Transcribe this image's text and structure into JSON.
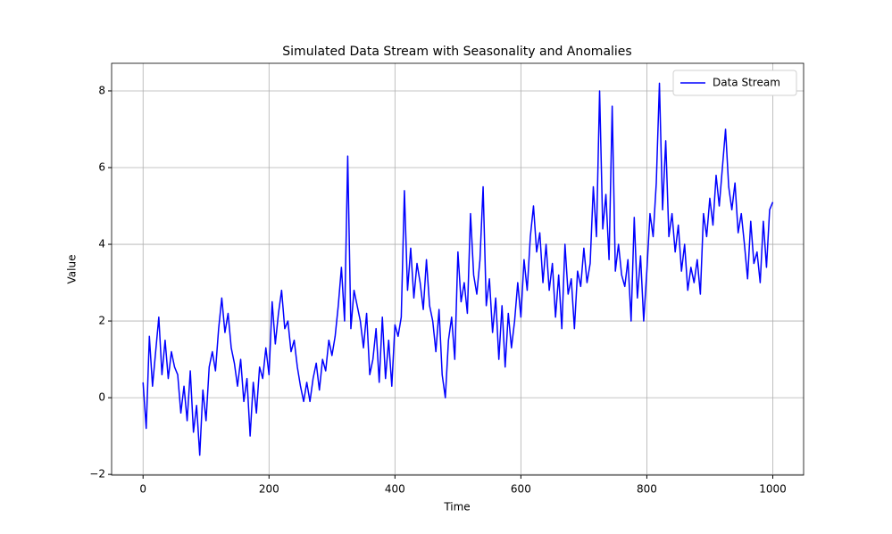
{
  "chart_data": {
    "type": "line",
    "title": "Simulated Data Stream with Seasonality and Anomalies",
    "x_label": "Time",
    "y_label": "Value",
    "x": [
      0,
      5,
      10,
      15,
      20,
      25,
      30,
      35,
      40,
      45,
      50,
      55,
      60,
      65,
      70,
      75,
      80,
      85,
      90,
      95,
      100,
      105,
      110,
      115,
      120,
      125,
      130,
      135,
      140,
      145,
      150,
      155,
      160,
      165,
      170,
      175,
      180,
      185,
      190,
      195,
      200,
      205,
      210,
      215,
      220,
      225,
      230,
      235,
      240,
      245,
      250,
      255,
      260,
      265,
      270,
      275,
      280,
      285,
      290,
      295,
      300,
      305,
      310,
      315,
      320,
      325,
      330,
      335,
      340,
      345,
      350,
      355,
      360,
      365,
      370,
      375,
      380,
      385,
      390,
      395,
      400,
      405,
      410,
      415,
      420,
      425,
      430,
      435,
      440,
      445,
      450,
      455,
      460,
      465,
      470,
      475,
      480,
      485,
      490,
      495,
      500,
      505,
      510,
      515,
      520,
      525,
      530,
      535,
      540,
      545,
      550,
      555,
      560,
      565,
      570,
      575,
      580,
      585,
      590,
      595,
      600,
      605,
      610,
      615,
      620,
      625,
      630,
      635,
      640,
      645,
      650,
      655,
      660,
      665,
      670,
      675,
      680,
      685,
      690,
      695,
      700,
      705,
      710,
      715,
      720,
      725,
      730,
      735,
      740,
      745,
      750,
      755,
      760,
      765,
      770,
      775,
      780,
      785,
      790,
      795,
      800,
      805,
      810,
      815,
      820,
      825,
      830,
      835,
      840,
      845,
      850,
      855,
      860,
      865,
      870,
      875,
      880,
      885,
      890,
      895,
      900,
      905,
      910,
      915,
      920,
      925,
      930,
      935,
      940,
      945,
      950,
      955,
      960,
      965,
      970,
      975,
      980,
      985,
      990,
      995,
      1000
    ],
    "series": [
      {
        "name": "Data Stream",
        "color": "#0000ff",
        "values": [
          0.4,
          -0.8,
          1.6,
          0.3,
          1.2,
          2.1,
          0.6,
          1.5,
          0.5,
          1.2,
          0.8,
          0.6,
          -0.4,
          0.3,
          -0.6,
          0.7,
          -0.9,
          -0.2,
          -1.5,
          0.2,
          -0.6,
          0.8,
          1.2,
          0.7,
          1.8,
          2.6,
          1.7,
          2.2,
          1.3,
          0.9,
          0.3,
          1.0,
          -0.1,
          0.5,
          -1.0,
          0.4,
          -0.4,
          0.8,
          0.5,
          1.3,
          0.6,
          2.5,
          1.4,
          2.2,
          2.8,
          1.8,
          2.0,
          1.2,
          1.5,
          0.8,
          0.3,
          -0.1,
          0.4,
          -0.1,
          0.5,
          0.9,
          0.2,
          1.0,
          0.7,
          1.5,
          1.1,
          1.6,
          2.4,
          3.4,
          2.0,
          6.3,
          1.8,
          2.8,
          2.4,
          2.0,
          1.3,
          2.2,
          0.6,
          1.0,
          1.8,
          0.4,
          2.1,
          0.5,
          1.5,
          0.3,
          1.9,
          1.6,
          2.1,
          5.4,
          2.8,
          3.9,
          2.6,
          3.5,
          3.0,
          2.3,
          3.6,
          2.4,
          2.0,
          1.2,
          2.3,
          0.6,
          0.0,
          1.5,
          2.1,
          1.0,
          3.8,
          2.5,
          3.0,
          2.2,
          4.8,
          3.2,
          2.7,
          3.6,
          5.5,
          2.4,
          3.1,
          1.7,
          2.6,
          1.0,
          2.4,
          0.8,
          2.2,
          1.3,
          2.0,
          3.0,
          2.1,
          3.6,
          2.8,
          4.2,
          5.0,
          3.8,
          4.3,
          3.0,
          4.0,
          2.8,
          3.5,
          2.1,
          3.2,
          1.8,
          4.0,
          2.7,
          3.1,
          1.8,
          3.3,
          2.9,
          3.9,
          3.0,
          3.5,
          5.5,
          4.2,
          8.0,
          4.4,
          5.3,
          3.6,
          7.6,
          3.3,
          4.0,
          3.2,
          2.9,
          3.6,
          2.0,
          4.7,
          2.6,
          3.7,
          2.0,
          3.3,
          4.8,
          4.2,
          5.6,
          8.2,
          4.9,
          6.7,
          4.2,
          4.8,
          3.8,
          4.5,
          3.3,
          4.0,
          2.8,
          3.4,
          3.0,
          3.6,
          2.7,
          4.8,
          4.2,
          5.2,
          4.5,
          5.8,
          5.0,
          6.0,
          7.0,
          5.5,
          4.9,
          5.6,
          4.3,
          4.8,
          4.0,
          3.1,
          4.6,
          3.5,
          3.8,
          3.0,
          4.6,
          3.4,
          4.9,
          5.1
        ]
      }
    ],
    "xlim": [
      -49.95,
      1048.95
    ],
    "ylim": [
      -2.02,
      8.72
    ],
    "xticks": [
      0,
      200,
      400,
      600,
      800,
      1000
    ],
    "yticks": [
      {
        "value": -2,
        "label": "−2"
      },
      0,
      2,
      4,
      6,
      8
    ],
    "grid": true,
    "legend": "upper right"
  }
}
